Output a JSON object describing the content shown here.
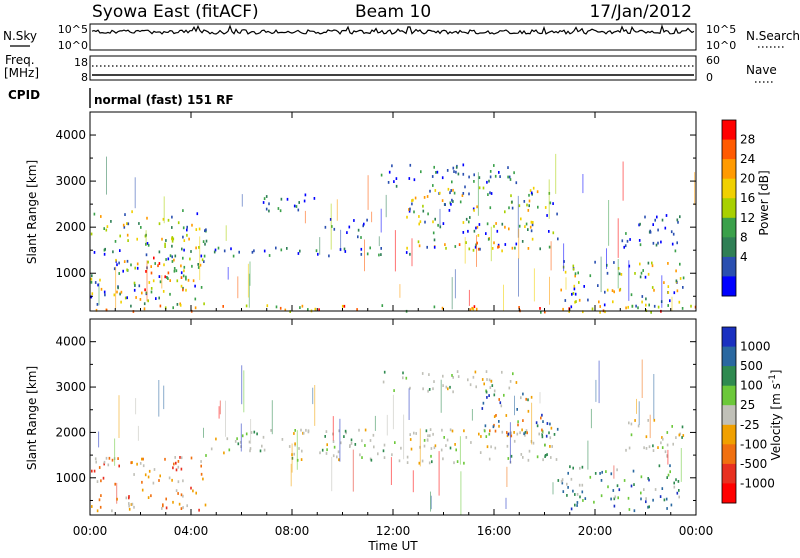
{
  "header": {
    "station": "Syowa East (fitACF)",
    "beam": "Beam 10",
    "date": "17/Jan/2012"
  },
  "top_panels": {
    "nsky_label": "N.Sky",
    "nsky_ticks": [
      "10^5",
      "10^0"
    ],
    "nsearch_label": "N.Search",
    "nsearch_ticks": [
      "10^5",
      "10^0"
    ],
    "freq_label": "Freq.",
    "freq_unit": "[MHz]",
    "freq_ticks": [
      "18",
      "8"
    ],
    "nave_label": "Nave",
    "nave_ticks": [
      "60",
      "0"
    ],
    "cpid_label": "CPID",
    "cpid_text": "normal (fast) 151 RF"
  },
  "chart_data": [
    {
      "type": "heatmap",
      "name": "power",
      "ylabel": "Slant Range [km]",
      "xlabel": "",
      "xlim": [
        0,
        24
      ],
      "ylim": [
        180,
        4500
      ],
      "yticks": [
        "1000",
        "2000",
        "3000",
        "4000"
      ],
      "colorbar": {
        "label": "Power [dB]",
        "ticks": [
          "28",
          "24",
          "20",
          "16",
          "12",
          "8",
          "4"
        ],
        "colors": [
          "#ff0000",
          "#ff5a00",
          "#ff9a00",
          "#f0d000",
          "#a8d000",
          "#3aa04a",
          "#2f7f55",
          "#2a4fb0",
          "#0000ff"
        ]
      },
      "regions": [
        {
          "t0": 0.0,
          "t1": 4.6,
          "r0": 300,
          "r1": 2400,
          "level": "mid"
        },
        {
          "t0": 0.0,
          "t1": 24.0,
          "r0": 180,
          "r1": 330,
          "level": "high"
        },
        {
          "t0": 2.0,
          "t1": 3.8,
          "r0": 600,
          "r1": 1500,
          "level": "high"
        },
        {
          "t0": 4.5,
          "t1": 14.0,
          "r0": 1400,
          "r1": 1600,
          "level": "low"
        },
        {
          "t0": 6.8,
          "t1": 9.0,
          "r0": 2300,
          "r1": 2750,
          "level": "low"
        },
        {
          "t0": 9.0,
          "t1": 11.0,
          "r0": 1800,
          "r1": 2200,
          "level": "low"
        },
        {
          "t0": 11.5,
          "t1": 17.0,
          "r0": 2900,
          "r1": 3400,
          "level": "low"
        },
        {
          "t0": 12.5,
          "t1": 18.5,
          "r0": 1550,
          "r1": 2900,
          "level": "mid"
        },
        {
          "t0": 14.0,
          "t1": 17.5,
          "r0": 1500,
          "r1": 1700,
          "level": "high"
        },
        {
          "t0": 18.5,
          "t1": 23.5,
          "r0": 300,
          "r1": 1300,
          "level": "mid"
        },
        {
          "t0": 21.0,
          "t1": 23.5,
          "r0": 1500,
          "r1": 2300,
          "level": "low"
        }
      ]
    },
    {
      "type": "heatmap",
      "name": "velocity",
      "ylabel": "Slant Range [km]",
      "xlabel": "Time UT",
      "xlim": [
        0,
        24
      ],
      "ylim": [
        180,
        4500
      ],
      "xticks": [
        "00:00",
        "04:00",
        "08:00",
        "12:00",
        "16:00",
        "20:00",
        "00:00"
      ],
      "yticks": [
        "1000",
        "2000",
        "3000",
        "4000"
      ],
      "colorbar": {
        "label": "Velocity [m s",
        "label_sup": "-1",
        "label_end": "]",
        "ticks": [
          "1000",
          "500",
          "100",
          "25",
          "-25",
          "-100",
          "-500",
          "-1000"
        ],
        "colors": [
          "#1a30c0",
          "#2a68a0",
          "#2f8a50",
          "#6cc83a",
          "#c0c0b8",
          "#f0a000",
          "#f07010",
          "#e83020",
          "#ff0000"
        ]
      },
      "regions": [
        {
          "t0": 0.0,
          "t1": 4.6,
          "r0": 300,
          "r1": 1500,
          "level": "neg"
        },
        {
          "t0": 4.5,
          "t1": 18.5,
          "r0": 1350,
          "r1": 2100,
          "level": "zero"
        },
        {
          "t0": 11.5,
          "t1": 17.0,
          "r0": 2900,
          "r1": 3400,
          "level": "zero"
        },
        {
          "t0": 15.5,
          "t1": 18.5,
          "r0": 1900,
          "r1": 2900,
          "level": "mixed"
        },
        {
          "t0": 18.5,
          "t1": 23.5,
          "r0": 300,
          "r1": 1300,
          "level": "pos"
        },
        {
          "t0": 21.0,
          "t1": 23.5,
          "r0": 1500,
          "r1": 2300,
          "level": "zero"
        }
      ]
    }
  ]
}
